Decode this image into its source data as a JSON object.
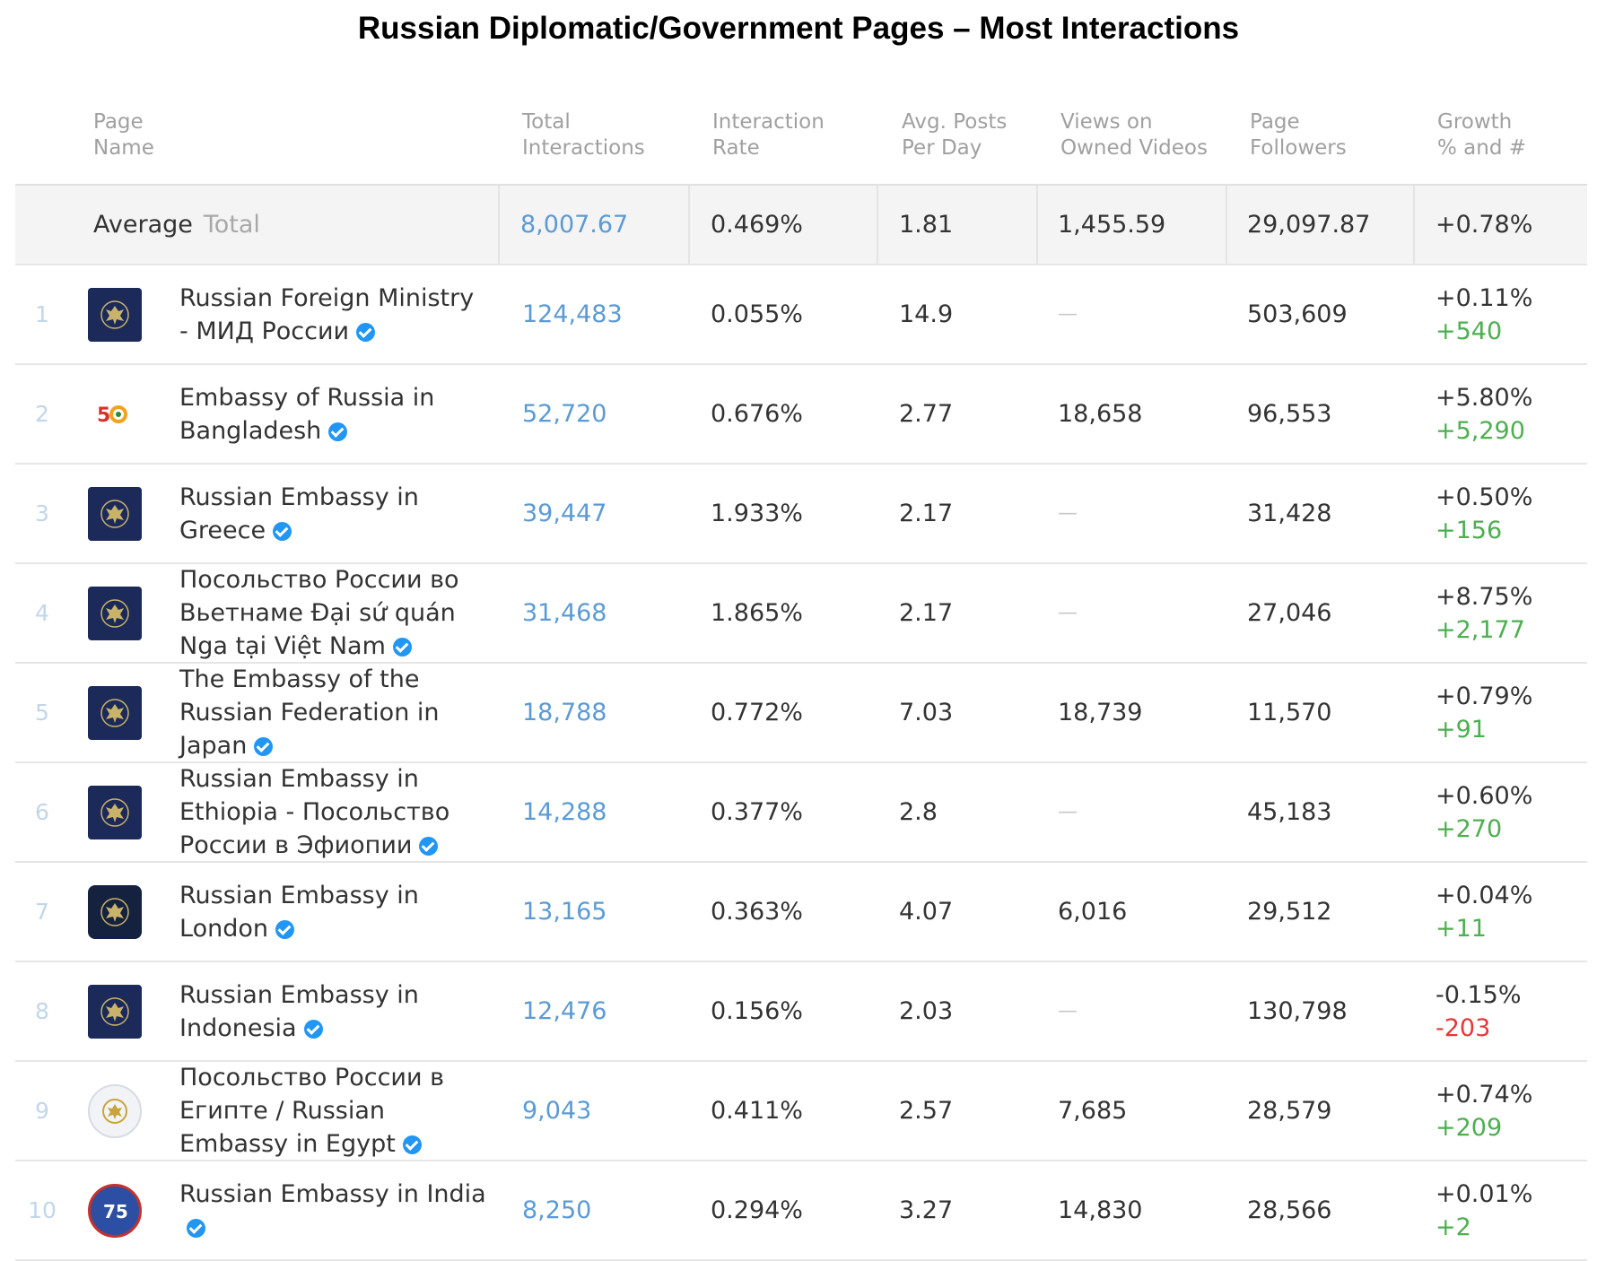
{
  "title": "Russian Diplomatic/Government Pages – Most Interactions",
  "headers": {
    "page_name": "Page\nName",
    "total_interactions": "Total\nInteractions",
    "interaction_rate": "Interaction\nRate",
    "avg_posts": "Avg. Posts\nPer Day",
    "views": "Views on\nOwned Videos",
    "followers": "Page\nFollowers",
    "growth": "Growth\n% and #"
  },
  "average": {
    "label": "Average",
    "total_label": "Total",
    "total_interactions": "8,007.67",
    "interaction_rate": "0.469%",
    "avg_posts": "1.81",
    "views": "1,455.59",
    "followers": "29,097.87",
    "growth_pct": "+0.78%"
  },
  "rows": [
    {
      "rank": "1",
      "name": "Russian Foreign Ministry - МИД России",
      "avatar_icon": "russian-coat-of-arms-icon",
      "total_interactions": "124,483",
      "interaction_rate": "0.055%",
      "avg_posts": "14.9",
      "views": "—",
      "followers": "503,609",
      "growth_pct": "+0.11%",
      "growth_abs": "+540",
      "growth_dir": "pos"
    },
    {
      "rank": "2",
      "name": "Embassy of Russia in Bangladesh",
      "avatar_icon": "anniversary-50-logo-icon",
      "total_interactions": "52,720",
      "interaction_rate": "0.676%",
      "avg_posts": "2.77",
      "views": "18,658",
      "followers": "96,553",
      "growth_pct": "+5.80%",
      "growth_abs": "+5,290",
      "growth_dir": "pos"
    },
    {
      "rank": "3",
      "name": "Russian Embassy in Greece",
      "avatar_icon": "russian-coat-of-arms-icon",
      "total_interactions": "39,447",
      "interaction_rate": "1.933%",
      "avg_posts": "2.17",
      "views": "—",
      "followers": "31,428",
      "growth_pct": "+0.50%",
      "growth_abs": "+156",
      "growth_dir": "pos"
    },
    {
      "rank": "4",
      "name": "Посольство России во Вьетнаме Đại sứ quán Nga tại Việt Nam",
      "avatar_icon": "russian-coat-of-arms-icon",
      "total_interactions": "31,468",
      "interaction_rate": "1.865%",
      "avg_posts": "2.17",
      "views": "—",
      "followers": "27,046",
      "growth_pct": "+8.75%",
      "growth_abs": "+2,177",
      "growth_dir": "pos"
    },
    {
      "rank": "5",
      "name": "The Embassy of the Russian Federation in Japan",
      "avatar_icon": "russian-coat-of-arms-icon",
      "total_interactions": "18,788",
      "interaction_rate": "0.772%",
      "avg_posts": "7.03",
      "views": "18,739",
      "followers": "11,570",
      "growth_pct": "+0.79%",
      "growth_abs": "+91",
      "growth_dir": "pos"
    },
    {
      "rank": "6",
      "name": "Russian Embassy in Ethiopia - Посольство России в Эфиопии",
      "avatar_icon": "russian-coat-of-arms-icon",
      "total_interactions": "14,288",
      "interaction_rate": "0.377%",
      "avg_posts": "2.8",
      "views": "—",
      "followers": "45,183",
      "growth_pct": "+0.60%",
      "growth_abs": "+270",
      "growth_dir": "pos"
    },
    {
      "rank": "7",
      "name": "Russian Embassy in London",
      "avatar_icon": "russian-coat-of-arms-icon",
      "total_interactions": "13,165",
      "interaction_rate": "0.363%",
      "avg_posts": "4.07",
      "views": "6,016",
      "followers": "29,512",
      "growth_pct": "+0.04%",
      "growth_abs": "+11",
      "growth_dir": "pos"
    },
    {
      "rank": "8",
      "name": "Russian Embassy in Indonesia",
      "avatar_icon": "russian-coat-of-arms-icon",
      "total_interactions": "12,476",
      "interaction_rate": "0.156%",
      "avg_posts": "2.03",
      "views": "—",
      "followers": "130,798",
      "growth_pct": "-0.15%",
      "growth_abs": "-203",
      "growth_dir": "neg"
    },
    {
      "rank": "9",
      "name": "Посольство России в Египте / Russian Embassy in Egypt",
      "avatar_icon": "embassy-seal-icon",
      "total_interactions": "9,043",
      "interaction_rate": "0.411%",
      "avg_posts": "2.57",
      "views": "7,685",
      "followers": "28,579",
      "growth_pct": "+0.74%",
      "growth_abs": "+209",
      "growth_dir": "pos"
    },
    {
      "rank": "10",
      "name": "Russian Embassy in India",
      "avatar_icon": "anniversary-75-logo-icon",
      "total_interactions": "8,250",
      "interaction_rate": "0.294%",
      "avg_posts": "3.27",
      "views": "14,830",
      "followers": "28,566",
      "growth_pct": "+0.01%",
      "growth_abs": "+2",
      "growth_dir": "pos"
    }
  ],
  "colors": {
    "link_blue": "#5b9bd5",
    "positive": "#4caf50",
    "negative": "#e53935",
    "verified": "#2196f3",
    "avatar_navy": "#1c2a5a"
  }
}
